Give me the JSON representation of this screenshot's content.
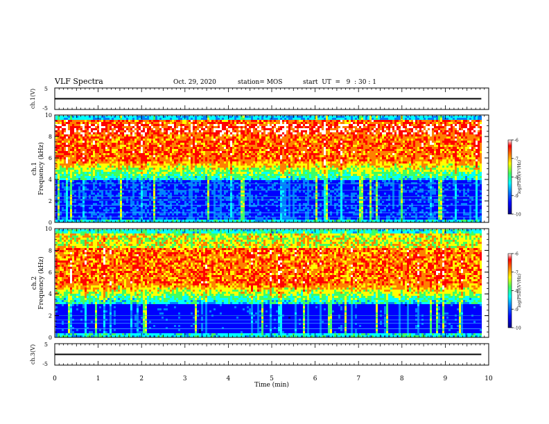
{
  "header": {
    "title": "VLF Spectra",
    "date": "Oct. 29, 2020",
    "station": "station= MOS",
    "start": "start  UT  =   9  : 30 : 1"
  },
  "chart_data": [
    {
      "type": "line",
      "panel": "ch1-waveform",
      "ylabel": "ch.1(V)",
      "yticks": [
        "5",
        "-5"
      ],
      "ylim": [
        -5,
        5
      ],
      "series": [
        {
          "x": [
            0,
            9.83
          ],
          "values": [
            0,
            0
          ]
        }
      ]
    },
    {
      "type": "heatmap",
      "panel": "ch1-spectrogram",
      "ylabel_channel": "ch.1",
      "ylabel": "Frequency (kHz)",
      "ylim": [
        0,
        10
      ],
      "yticks": [
        "0",
        "2",
        "4",
        "6",
        "8",
        "10"
      ],
      "colorbar": {
        "label": "log(PSD)(V²/Hz)",
        "range": [
          -10,
          -6
        ],
        "ticks": [
          "-6",
          "-7",
          "-8",
          "-9",
          "-10"
        ]
      }
    },
    {
      "type": "heatmap",
      "panel": "ch2-spectrogram",
      "ylabel_channel": "ch.2",
      "ylabel": "Frequency (kHz)",
      "ylim": [
        0,
        10
      ],
      "yticks": [
        "0",
        "2",
        "4",
        "6",
        "8",
        "10"
      ],
      "colorbar": {
        "label": "log(PSD)(V²/Hz)",
        "range": [
          -10,
          -6
        ],
        "ticks": [
          "-6",
          "-7",
          "-8",
          "-9",
          "-10"
        ]
      }
    },
    {
      "type": "line",
      "panel": "ch3-waveform",
      "ylabel": "ch.3(V)",
      "yticks": [
        "5",
        "-5"
      ],
      "ylim": [
        -5,
        5
      ],
      "series": [
        {
          "x": [
            0,
            9.83
          ],
          "values": [
            0,
            0
          ]
        }
      ]
    }
  ],
  "xaxis": {
    "label": "Time  (min)",
    "xlim": [
      0,
      10
    ],
    "ticks": [
      "0",
      "1",
      "2",
      "3",
      "4",
      "5",
      "6",
      "7",
      "8",
      "9",
      "10"
    ]
  },
  "colors": {
    "cmap": [
      "#00007f",
      "#0000ff",
      "#0080ff",
      "#00ffff",
      "#40ff60",
      "#ffff00",
      "#ff8000",
      "#ff0000",
      "#ffffff"
    ]
  }
}
